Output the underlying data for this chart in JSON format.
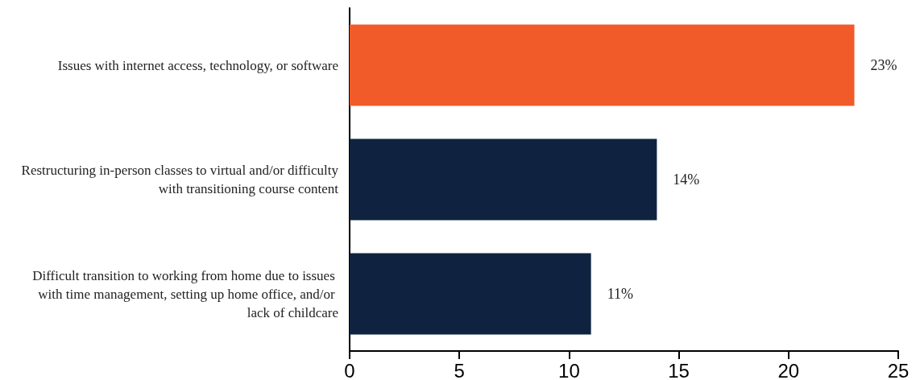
{
  "chart_data": {
    "type": "bar",
    "orientation": "horizontal",
    "categories": [
      "Issues with internet access, technology, or software",
      "Restructuring in-person classes to virtual and/or difficulty with transitioning course content",
      "Difficult transition to working from home due to issues with time management, setting up home office, and/or lack of childcare"
    ],
    "values": [
      23,
      14,
      11
    ],
    "colors": [
      "#f15a29",
      "#0f2340",
      "#0f2340"
    ],
    "value_labels": [
      "23%",
      "14%",
      "11%"
    ],
    "xlim": [
      0,
      25
    ],
    "xticks": [
      0,
      5,
      10,
      15,
      20,
      25
    ],
    "grid": false
  }
}
